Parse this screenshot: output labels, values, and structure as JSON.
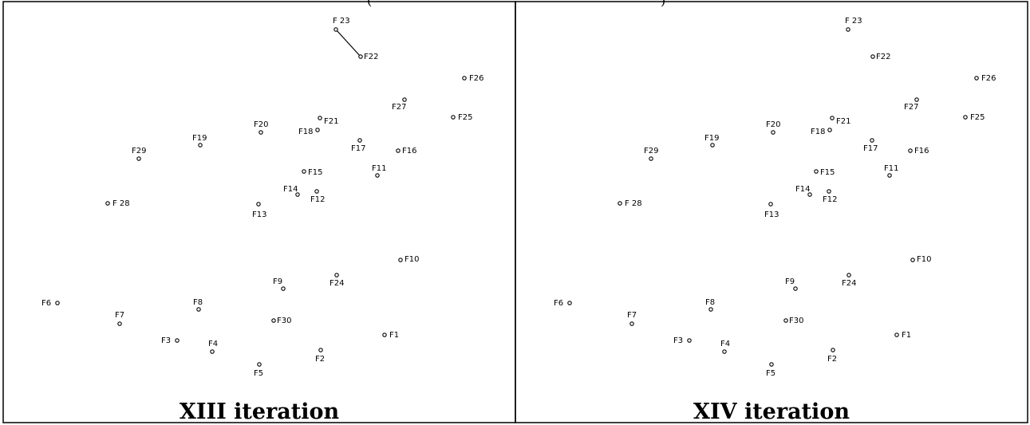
{
  "header_fragment": "(",
  "header_fragment_right": ")",
  "panels": [
    {
      "caption": "XIII iteration",
      "edges": [
        [
          "F 23",
          "F22"
        ]
      ]
    },
    {
      "caption": "XIV iteration",
      "edges": []
    }
  ],
  "points": [
    {
      "id": "F 23",
      "label": "F 23"
    },
    {
      "id": "F22",
      "label": "F22"
    },
    {
      "id": "F26",
      "label": "F26"
    },
    {
      "id": "F27",
      "label": "F27"
    },
    {
      "id": "F25",
      "label": "F25"
    },
    {
      "id": "F20",
      "label": "F20"
    },
    {
      "id": "F21",
      "label": "F21"
    },
    {
      "id": "F18",
      "label": "F18"
    },
    {
      "id": "F19",
      "label": "F19"
    },
    {
      "id": "F17",
      "label": "F17"
    },
    {
      "id": "F16",
      "label": "F16"
    },
    {
      "id": "F29",
      "label": "F29"
    },
    {
      "id": "F15",
      "label": "F15"
    },
    {
      "id": "F11",
      "label": "F11"
    },
    {
      "id": "F14",
      "label": "F14"
    },
    {
      "id": "F12",
      "label": "F12"
    },
    {
      "id": "F 28",
      "label": "F 28"
    },
    {
      "id": "F13",
      "label": "F13"
    },
    {
      "id": "F10",
      "label": "F10"
    },
    {
      "id": "F9",
      "label": "F9"
    },
    {
      "id": "F24",
      "label": "F24"
    },
    {
      "id": "F6",
      "label": "F6"
    },
    {
      "id": "F8",
      "label": "F8"
    },
    {
      "id": "F7",
      "label": "F7"
    },
    {
      "id": "F30",
      "label": "F30"
    },
    {
      "id": "F1",
      "label": "F1"
    },
    {
      "id": "F3",
      "label": "F3"
    },
    {
      "id": "F4",
      "label": "F4"
    },
    {
      "id": "F2",
      "label": "F2"
    },
    {
      "id": "F5",
      "label": "F5"
    }
  ]
}
